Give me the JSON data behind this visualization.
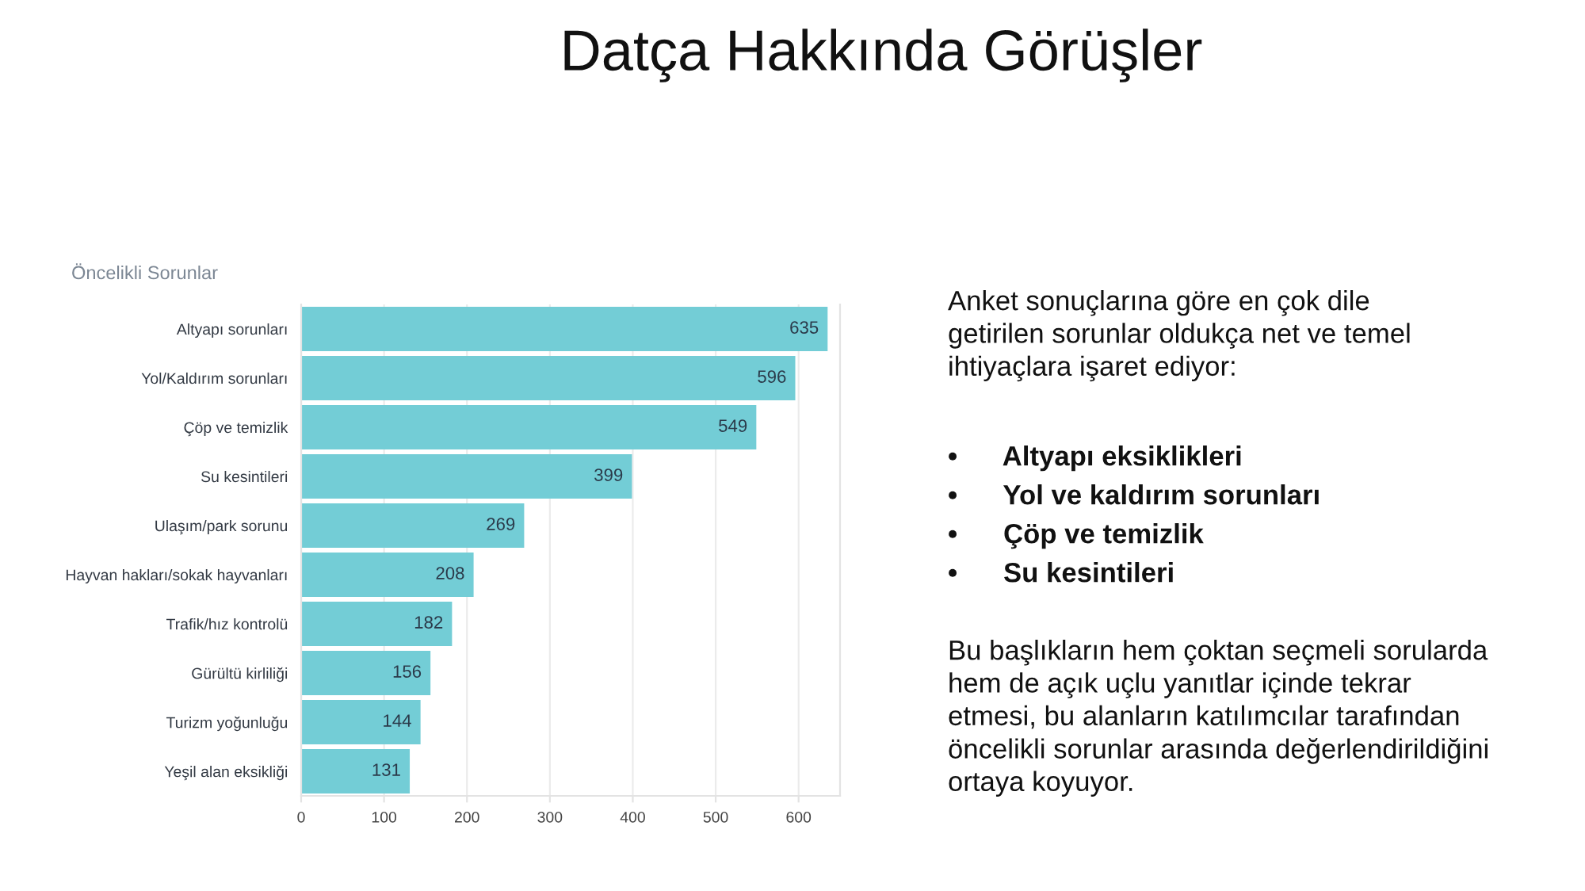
{
  "chart_data": [
    {
      "type": "bar",
      "title": "Datça Hakkında Görüşler",
      "subtitle": "Öncelikli Sorunlar",
      "orientation": "horizontal",
      "categories": [
        "Altyapı sorunları",
        "Yol/Kaldırım sorunları",
        "Çöp ve temizlik",
        "Su kesintileri",
        "Ulaşım/park sorunu",
        "Hayvan hakları/sokak hayvanları",
        "Trafik/hız kontrolü",
        "Gürültü kirliliği",
        "Turizm yoğunluğu",
        "Yeşil alan eksikliği"
      ],
      "values": [
        635,
        596,
        549,
        399,
        269,
        208,
        182,
        156,
        144,
        131
      ],
      "color": "#73cdd6",
      "xlim": [
        0,
        650
      ],
      "xticks": [
        0,
        100,
        200,
        300,
        400,
        500,
        600
      ],
      "grid": "x",
      "data_labels": true
    },
    {
      "type": "other",
      "annotations": [
        "Anket sonuçlarına göre en çok dile\ngetirilen sorunlar oldukça net ve temel\nihtiyaçlara işaret ediyor:",
        "•      Altyapı eksiklikleri",
        "•      Yol ve kaldırım sorunları",
        "•      Çöp ve temizlik",
        "•      Su kesintileri",
        "Bu başlıkların hem çoktan seçmeli sorularda\nhem de açık uçlu yanıtlar içinde tekrar\netmesi, bu alanların katılımcılar tarafından\nöncelikli sorunlar arasında değerlendirildiğini\nortaya koyuyor."
      ]
    }
  ]
}
